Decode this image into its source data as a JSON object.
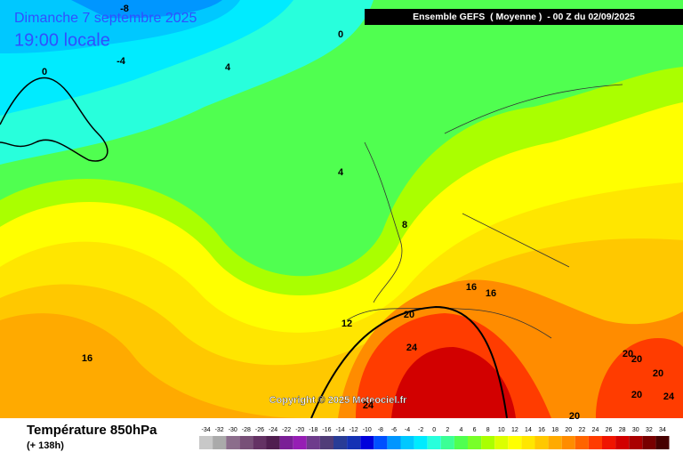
{
  "header": {
    "date": "Dimanche 7 septembre 2025",
    "time": "19:00 locale",
    "run": "Ensemble GEFS  ( Moyenne )  - 00 Z du 02/09/2025"
  },
  "copyright": "Copyright © 2025 Meteociel.fr",
  "footer": {
    "variable": "Température 850hPa",
    "lead": "(+ 138h)"
  },
  "legend": {
    "values": [
      -34,
      -32,
      -30,
      -28,
      -26,
      -24,
      -22,
      -20,
      -18,
      -16,
      -14,
      -12,
      -10,
      -8,
      -6,
      -4,
      -2,
      0,
      2,
      4,
      6,
      8,
      10,
      12,
      14,
      16,
      18,
      20,
      22,
      24,
      26,
      28,
      30,
      32,
      34
    ],
    "colors": [
      "#c8c8c8",
      "#aaaaaa",
      "#8c6e8c",
      "#785078",
      "#643264",
      "#501e50",
      "#7a1e96",
      "#961eb4",
      "#6e3c8c",
      "#503c78",
      "#283c96",
      "#1432b4",
      "#0000dc",
      "#0050ff",
      "#0096ff",
      "#00c8ff",
      "#00ebff",
      "#28ffdc",
      "#3cff96",
      "#50ff50",
      "#78ff28",
      "#aaff00",
      "#dcff00",
      "#ffff00",
      "#ffe600",
      "#ffc800",
      "#ffaa00",
      "#ff8c00",
      "#ff6400",
      "#ff3c00",
      "#f01400",
      "#d20000",
      "#aa0000",
      "#780000",
      "#460000"
    ]
  },
  "contour_labels": [
    -8,
    -4,
    0,
    0,
    4,
    4,
    8,
    12,
    16,
    16,
    16,
    20,
    24,
    20,
    20,
    20,
    20,
    24,
    24,
    20
  ]
}
